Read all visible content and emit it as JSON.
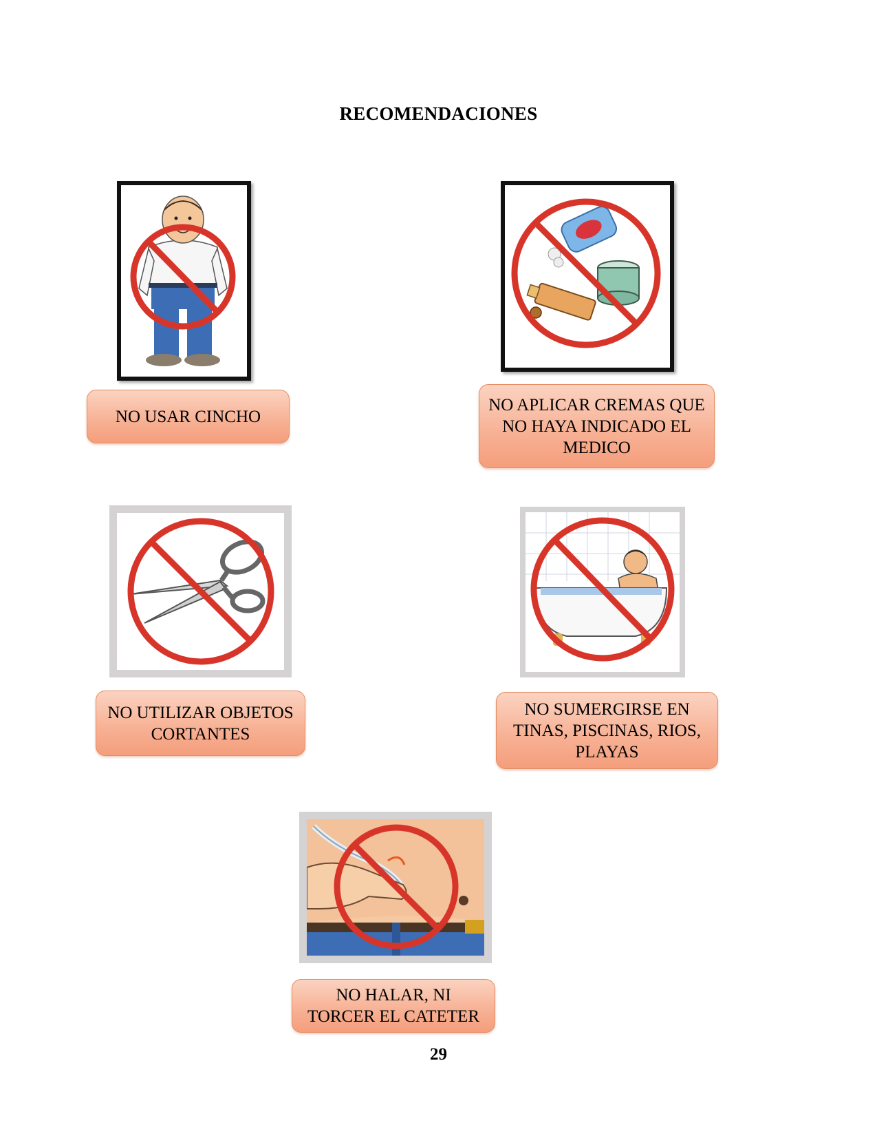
{
  "page": {
    "title": "RECOMENDACIONES",
    "page_number": "29"
  },
  "items": [
    {
      "label": "NO USAR CINCHO",
      "icon": "man-belt-prohibited-icon"
    },
    {
      "label": "NO APLICAR CREMAS QUE NO HAYA INDICADO EL MEDICO",
      "icon": "creams-prohibited-icon"
    },
    {
      "label": "NO UTILIZAR OBJETOS CORTANTES",
      "icon": "scissors-prohibited-icon"
    },
    {
      "label": "NO SUMERGIRSE EN TINAS, PISCINAS, RIOS, PLAYAS",
      "icon": "bathtub-prohibited-icon"
    },
    {
      "label": "NO HALAR, NI TORCER EL CATETER",
      "icon": "catheter-pull-prohibited-icon"
    }
  ],
  "colors": {
    "prohibition_red": "#d8352a",
    "label_fill": "#f7b093",
    "label_border": "#e58c60"
  }
}
